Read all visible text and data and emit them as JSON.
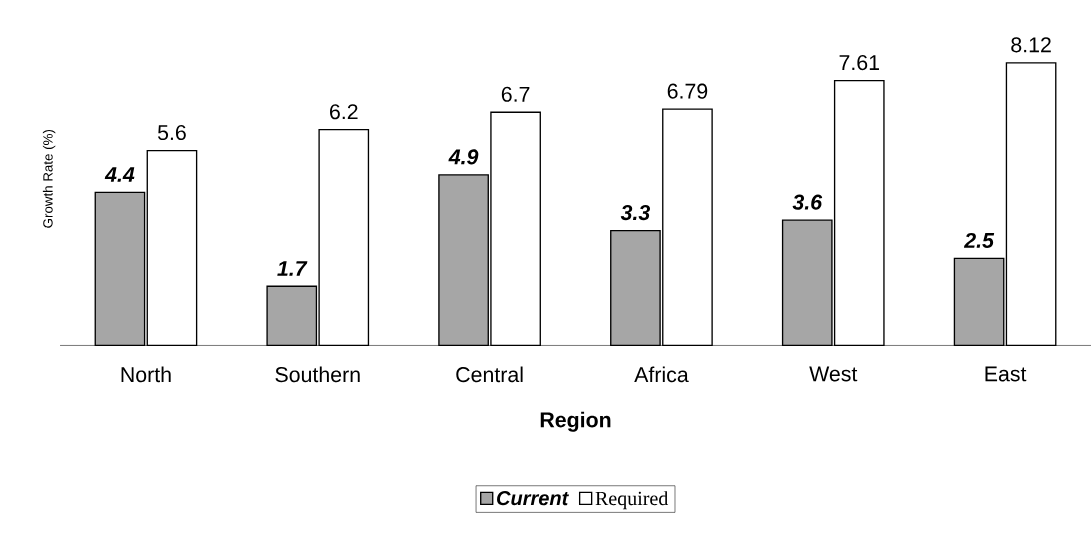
{
  "chart_data": {
    "type": "bar",
    "xlabel": "Region",
    "ylabel": "Growth Rate (%)",
    "categories": [
      "North",
      "Southern",
      "Central",
      "Africa",
      "West",
      "East"
    ],
    "series": [
      {
        "name": "Current",
        "color": "#a6a6a6",
        "values": [
          4.4,
          1.7,
          4.9,
          3.3,
          3.6,
          2.5
        ]
      },
      {
        "name": "Required",
        "color": "#ffffff",
        "values": [
          5.6,
          6.2,
          6.7,
          6.79,
          7.61,
          8.12
        ]
      }
    ],
    "data_labels": true,
    "legend": "bottom"
  }
}
